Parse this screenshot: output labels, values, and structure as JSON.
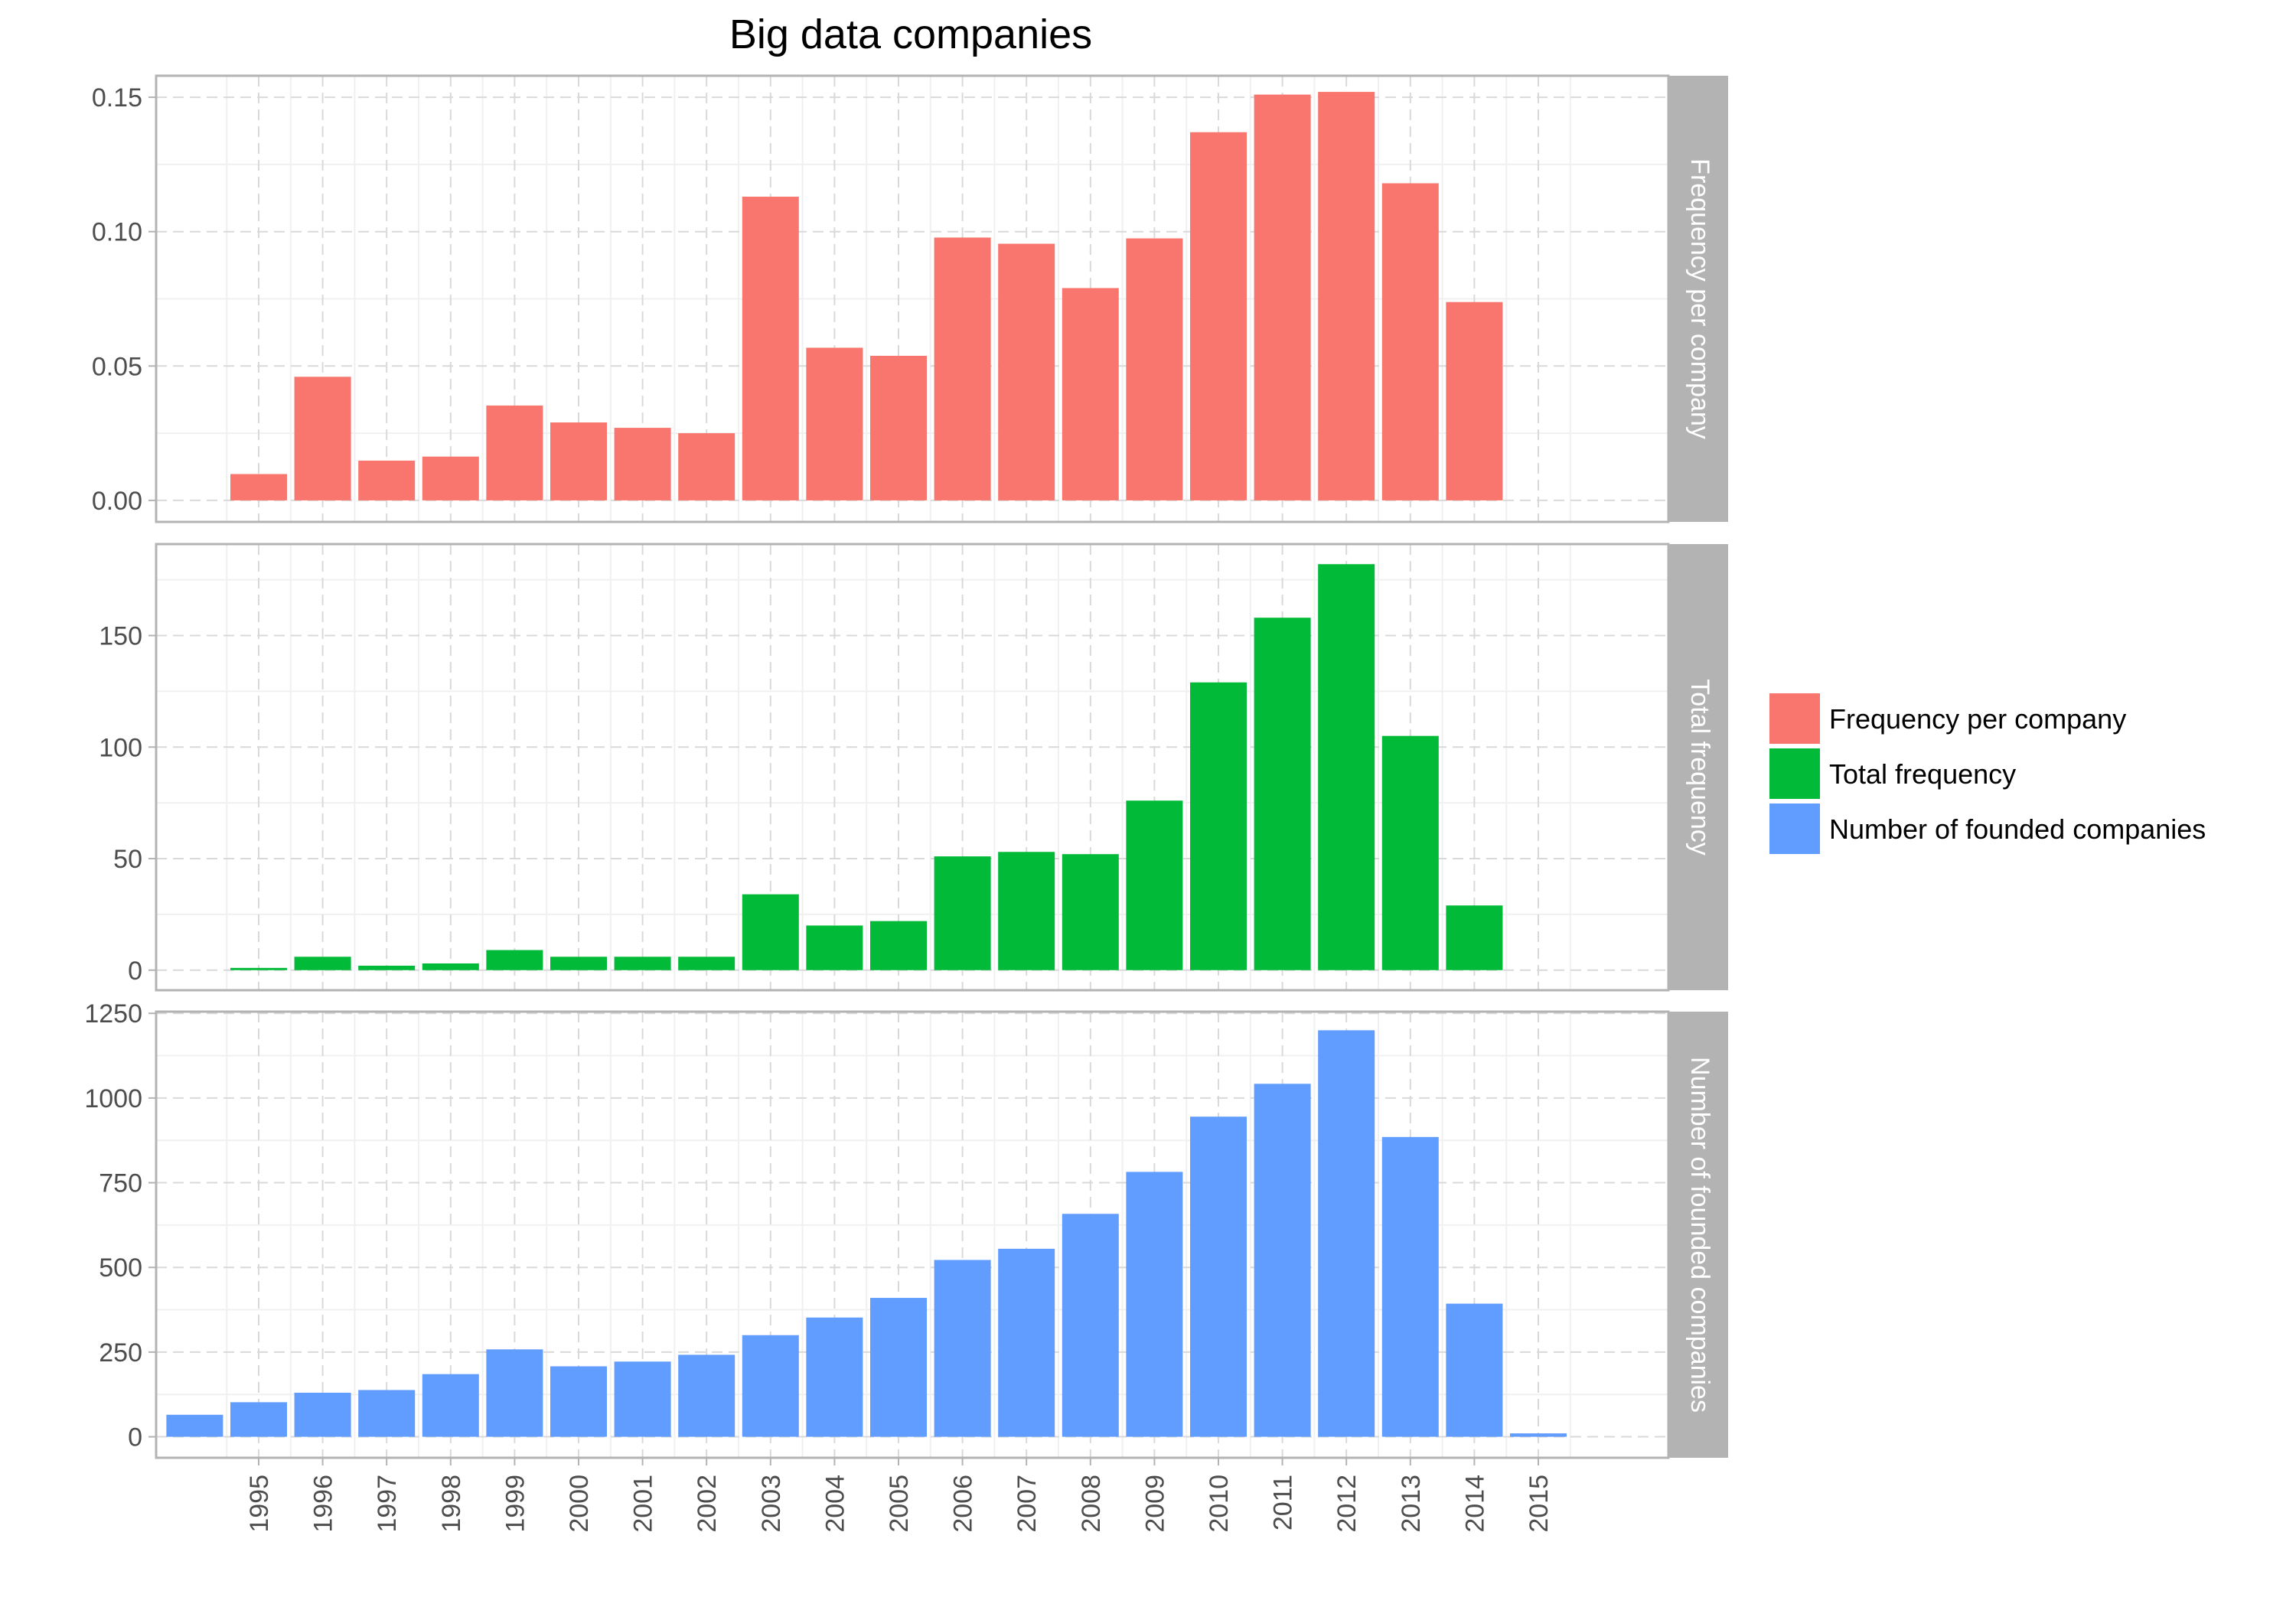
{
  "chart_data": {
    "type": "bar",
    "title": "Big data companies",
    "x_tick_labels": [
      "1995",
      "1996",
      "1997",
      "1998",
      "1999",
      "2000",
      "2001",
      "2002",
      "2003",
      "2004",
      "2005",
      "2006",
      "2007",
      "2008",
      "2009",
      "2010",
      "2011",
      "2012",
      "2013",
      "2014",
      "2015"
    ],
    "x": [
      1994,
      1995,
      1996,
      1997,
      1998,
      1999,
      2000,
      2001,
      2002,
      2003,
      2004,
      2005,
      2006,
      2007,
      2008,
      2009,
      2010,
      2011,
      2012,
      2013,
      2014,
      2015
    ],
    "grid": true,
    "legend_position": "right",
    "panels": [
      {
        "strip_label": "Frequency per company",
        "color": "#F8766D",
        "ylim": [
          -0.008,
          0.158
        ],
        "yticks": [
          0,
          0.05,
          0.1,
          0.15
        ],
        "ytick_labels": [
          "0.00",
          "0.05",
          "0.10",
          "0.15"
        ],
        "values": [
          null,
          0.0098,
          0.046,
          0.0148,
          0.0163,
          0.0353,
          0.029,
          0.027,
          0.025,
          0.113,
          0.0568,
          0.0538,
          0.0978,
          0.0955,
          0.079,
          0.0975,
          0.137,
          0.151,
          0.152,
          0.118,
          0.0738,
          null
        ]
      },
      {
        "strip_label": "Total frequency",
        "color": "#00BA38",
        "ylim": [
          -9,
          191
        ],
        "yticks": [
          0,
          50,
          100,
          150
        ],
        "ytick_labels": [
          "0",
          "50",
          "100",
          "150"
        ],
        "values": [
          null,
          1,
          6,
          2,
          3,
          9,
          6,
          6,
          6,
          34,
          20,
          22,
          51,
          53,
          52,
          76,
          129,
          158,
          182,
          105,
          29,
          null
        ]
      },
      {
        "strip_label": "Number of founded companies",
        "color": "#619CFF",
        "ylim": [
          -62,
          1255
        ],
        "yticks": [
          0,
          250,
          500,
          750,
          1000,
          1250
        ],
        "ytick_labels": [
          "0",
          "250",
          "500",
          "750",
          "1000",
          "1250"
        ],
        "values": [
          65,
          102,
          130,
          138,
          185,
          258,
          208,
          222,
          242,
          300,
          352,
          410,
          522,
          555,
          658,
          782,
          945,
          1042,
          1200,
          885,
          393,
          10
        ]
      }
    ],
    "legend": [
      {
        "label": "Frequency per company",
        "color": "#F8766D"
      },
      {
        "label": "Total frequency",
        "color": "#00BA38"
      },
      {
        "label": "Number of founded companies",
        "color": "#619CFF"
      }
    ]
  }
}
